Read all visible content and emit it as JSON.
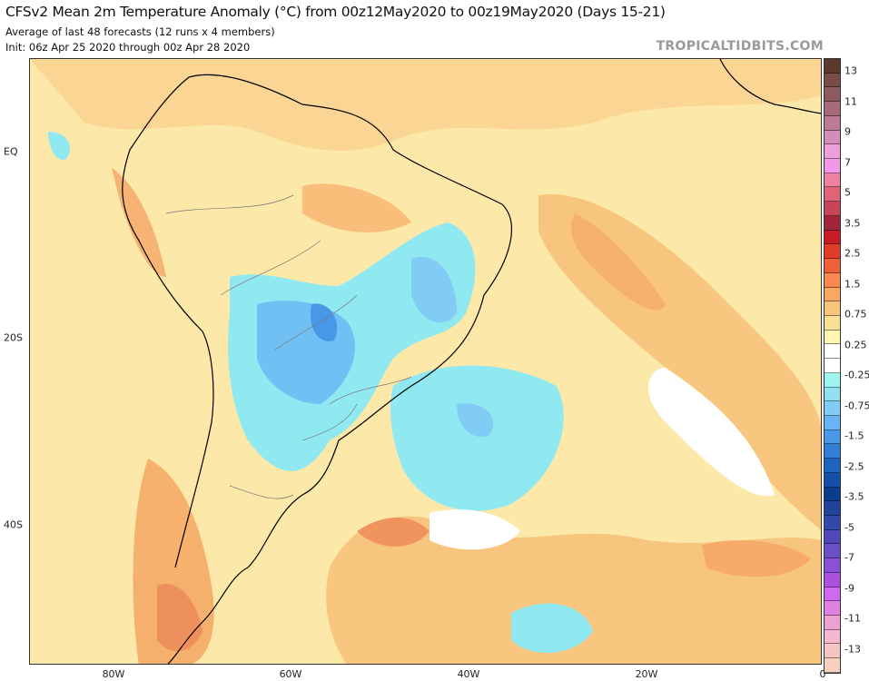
{
  "header": {
    "title": "CFSv2 Mean 2m Temperature Anomaly (°C) from 00z12May2020 to 00z19May2020 (Days 15-21)",
    "subtitle1": "Average of last 48 forecasts (12 runs x 4 members)",
    "subtitle2": "Init: 06z Apr 25 2020 through 00z Apr 28 2020",
    "brand": "TROPICALTIDBITS.COM"
  },
  "map": {
    "x_labels": [
      "80W",
      "60W",
      "40W",
      "20W",
      "0"
    ],
    "y_labels": [
      "EQ",
      "20S",
      "40S"
    ],
    "region": "South America",
    "land_outline_color": "#000000",
    "warm_color": "#f8c880",
    "cool_color": "#90e8f0"
  },
  "colorbar": {
    "labels": [
      "13",
      "11",
      "9",
      "7",
      "5",
      "3.5",
      "2.5",
      "1.5",
      "0.75",
      "0.25",
      "-0.25",
      "-0.75",
      "-1.5",
      "-2.5",
      "-3.5",
      "-5",
      "-7",
      "-9",
      "-11",
      "-13"
    ],
    "colors": [
      "#5a3a2c",
      "#7a4c46",
      "#8e5a5e",
      "#a66a78",
      "#bc7a94",
      "#d48cb8",
      "#ee9ed8",
      "#f298e8",
      "#f080a0",
      "#e06478",
      "#c84458",
      "#a0243a",
      "#c81c24",
      "#e03c28",
      "#f06038",
      "#f88850",
      "#f8a860",
      "#f8c47c",
      "#fae094",
      "#fff6b0",
      "#ffffff",
      "#ffffff",
      "#a0f4f0",
      "#90e0f0",
      "#80ccf4",
      "#68b4f4",
      "#4898e8",
      "#3080d8",
      "#1c64c0",
      "#1450a8",
      "#0c3c90",
      "#20449c",
      "#3448ac",
      "#5048b8",
      "#6c50c8",
      "#8c50d8",
      "#ac50e0",
      "#d068f0",
      "#e080e0",
      "#eea0d0",
      "#f6b8d0",
      "#f8c4c4",
      "#f8d0c0"
    ]
  }
}
